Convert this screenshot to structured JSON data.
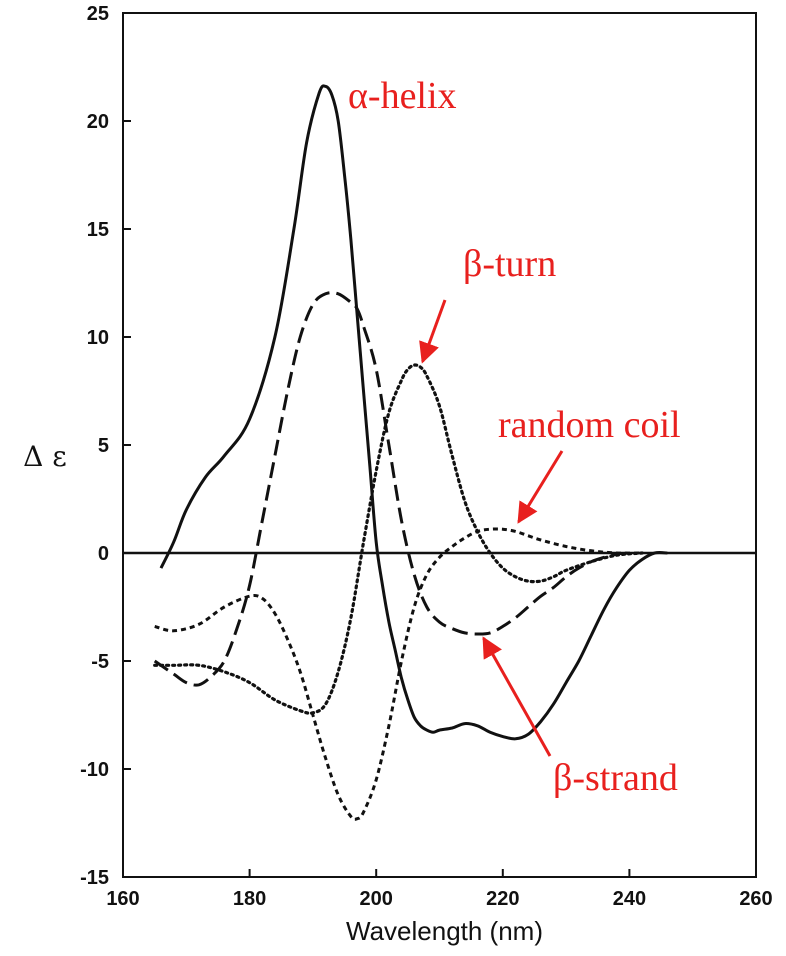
{
  "chart_data": {
    "type": "line",
    "title": "",
    "xlabel": "Wavelength (nm)",
    "ylabel": "Δ ε",
    "xlim": [
      160,
      260
    ],
    "ylim": [
      -15,
      25
    ],
    "xticks": [
      "160",
      "180",
      "200",
      "220",
      "240",
      "260"
    ],
    "yticks": [
      "25",
      "20",
      "15",
      "10",
      "5",
      "0",
      "-5",
      "-10",
      "-15"
    ],
    "grid": false,
    "legend": "none",
    "zero_line": true,
    "series": [
      {
        "name": "α-helix",
        "style": "solid",
        "x": [
          166,
          168,
          170,
          173,
          176,
          180,
          184,
          187,
          189,
          191,
          192,
          193,
          194,
          195,
          196,
          197,
          198,
          199,
          200,
          201,
          202,
          203,
          204,
          205,
          206,
          207,
          208,
          209,
          210,
          212,
          214,
          216,
          218,
          220,
          222,
          224,
          226,
          228,
          230,
          232,
          234,
          236,
          238,
          240,
          242,
          244,
          246
        ],
        "y": [
          -0.7,
          0.5,
          2,
          3.5,
          4.5,
          6.2,
          10,
          15,
          19,
          21.3,
          21.6,
          21.2,
          20,
          17.5,
          14.5,
          11,
          7.5,
          4,
          0.5,
          -1.5,
          -3.2,
          -4.5,
          -5.8,
          -6.8,
          -7.6,
          -8,
          -8.2,
          -8.3,
          -8.2,
          -8.1,
          -7.9,
          -8,
          -8.3,
          -8.5,
          -8.6,
          -8.4,
          -7.8,
          -7,
          -6,
          -5,
          -3.8,
          -2.6,
          -1.6,
          -0.8,
          -0.3,
          0,
          0
        ]
      },
      {
        "name": "β-turn",
        "style": "dotted",
        "x": [
          165,
          168,
          172,
          176,
          180,
          184,
          188,
          190,
          192,
          194,
          196,
          198,
          200,
          202,
          204,
          205,
          206,
          207,
          208,
          210,
          212,
          214,
          216,
          218,
          220,
          222,
          224,
          226,
          228,
          230,
          234,
          238,
          242
        ],
        "y": [
          -5.2,
          -5.2,
          -5.2,
          -5.5,
          -6,
          -6.8,
          -7.3,
          -7.4,
          -7,
          -5.5,
          -3,
          0.5,
          3.8,
          6.5,
          8,
          8.5,
          8.7,
          8.6,
          8.2,
          6.8,
          4.5,
          2.4,
          1,
          0,
          -0.7,
          -1.1,
          -1.3,
          -1.3,
          -1.1,
          -0.8,
          -0.4,
          -0.1,
          0
        ]
      },
      {
        "name": "random coil",
        "style": "short-dash",
        "x": [
          165,
          168,
          172,
          176,
          180,
          182,
          184,
          186,
          188,
          190,
          192,
          194,
          196,
          197,
          198,
          200,
          202,
          204,
          206,
          208,
          210,
          212,
          214,
          216,
          218,
          220,
          222,
          224,
          226,
          230,
          234,
          238,
          242
        ],
        "y": [
          -3.4,
          -3.6,
          -3.3,
          -2.5,
          -2,
          -2.1,
          -2.8,
          -4,
          -5.5,
          -7.5,
          -9.5,
          -11.2,
          -12.2,
          -12.3,
          -12,
          -10.5,
          -8,
          -5,
          -2.5,
          -1,
          -0.2,
          0.3,
          0.7,
          1,
          1.1,
          1.1,
          1,
          0.8,
          0.6,
          0.3,
          0.1,
          0,
          0
        ]
      },
      {
        "name": "β-strand",
        "style": "long-dash",
        "x": [
          165,
          168,
          170,
          172,
          174,
          176,
          178,
          180,
          182,
          184,
          186,
          188,
          190,
          192,
          194,
          196,
          197,
          198,
          200,
          202,
          204,
          206,
          208,
          210,
          212,
          214,
          216,
          218,
          220,
          222,
          224,
          226,
          228,
          230,
          232,
          234,
          236,
          238,
          240
        ],
        "y": [
          -5,
          -5.6,
          -6,
          -6.1,
          -5.7,
          -5,
          -3.5,
          -1.5,
          1.5,
          4.5,
          7.5,
          10,
          11.5,
          12,
          12,
          11.6,
          11.3,
          10.5,
          8.5,
          5,
          1.5,
          -1,
          -2.5,
          -3.2,
          -3.5,
          -3.7,
          -3.75,
          -3.7,
          -3.4,
          -3,
          -2.5,
          -2,
          -1.6,
          -1.1,
          -0.7,
          -0.4,
          -0.2,
          -0.05,
          0
        ]
      }
    ],
    "annotations": [
      {
        "text": "α-helix",
        "color": "#e8201e"
      },
      {
        "text": "β-turn",
        "color": "#e8201e",
        "arrow_to": [
          207,
          8.6
        ]
      },
      {
        "text": "random coil",
        "color": "#e8201e",
        "arrow_to": [
          222,
          1.2
        ]
      },
      {
        "text": "β-strand",
        "color": "#e8201e",
        "arrow_to": [
          216.5,
          -3.7
        ]
      }
    ]
  }
}
